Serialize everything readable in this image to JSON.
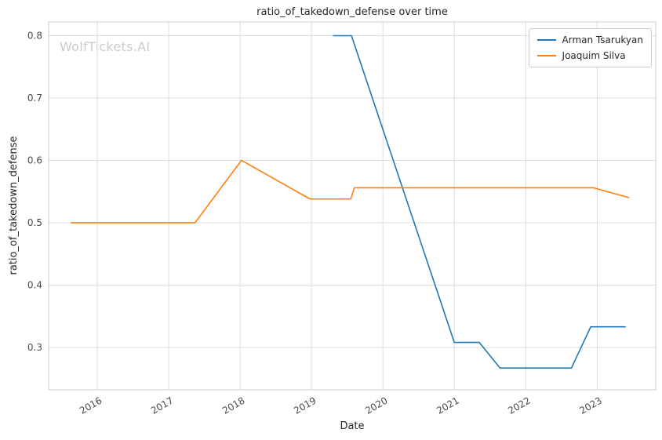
{
  "watermark": "WolfTickets.AI",
  "chart_data": {
    "type": "line",
    "title": "ratio_of_takedown_defense over time",
    "xlabel": "Date",
    "ylabel": "ratio_of_takedown_defense",
    "xlim": [
      2015.32,
      2023.82
    ],
    "ylim": [
      0.232,
      0.822
    ],
    "x_ticks": [
      2016,
      2017,
      2018,
      2019,
      2020,
      2021,
      2022,
      2023
    ],
    "y_ticks": [
      0.3,
      0.4,
      0.5,
      0.6,
      0.7,
      0.8
    ],
    "grid": true,
    "legend_position": "upper right",
    "grid_color": "#dddddd",
    "spine_color": "#cccccc",
    "series": [
      {
        "name": "Arman Tsarukyan",
        "color": "#1f77b4",
        "points": [
          [
            2019.3,
            0.8
          ],
          [
            2019.56,
            0.8
          ],
          [
            2021.0,
            0.308
          ],
          [
            2021.35,
            0.308
          ],
          [
            2021.64,
            0.267
          ],
          [
            2022.64,
            0.267
          ],
          [
            2022.91,
            0.333
          ],
          [
            2023.4,
            0.333
          ]
        ]
      },
      {
        "name": "Joaquim Silva",
        "color": "#ff7f0e",
        "points": [
          [
            2015.63,
            0.5
          ],
          [
            2017.37,
            0.5
          ],
          [
            2018.02,
            0.6
          ],
          [
            2018.98,
            0.538
          ],
          [
            2019.55,
            0.538
          ],
          [
            2019.6,
            0.556
          ],
          [
            2022.95,
            0.556
          ],
          [
            2023.45,
            0.54
          ]
        ]
      }
    ]
  }
}
